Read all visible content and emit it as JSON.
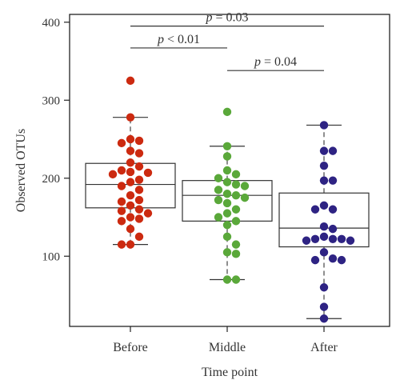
{
  "chart_data": {
    "type": "box",
    "xlabel": "Time point",
    "ylabel": "Observed OTUs",
    "ylim": [
      10,
      410
    ],
    "yticks": [
      100,
      200,
      300,
      400
    ],
    "categories": [
      "Before",
      "Middle",
      "After"
    ],
    "colors": [
      "#cc2a10",
      "#5aa83a",
      "#2e2383"
    ],
    "groups": [
      {
        "name": "Before",
        "color": "#cc2a10",
        "whisker_low": 115,
        "q1": 162,
        "median": 192,
        "q3": 219,
        "whisker_high": 278,
        "points": [
          325,
          278,
          250,
          248,
          245,
          235,
          232,
          220,
          215,
          210,
          208,
          207,
          205,
          198,
          195,
          190,
          185,
          178,
          172,
          170,
          165,
          160,
          158,
          155,
          150,
          148,
          145,
          135,
          125,
          115,
          115
        ]
      },
      {
        "name": "Middle",
        "color": "#5aa83a",
        "whisker_low": 70,
        "q1": 145,
        "median": 178,
        "q3": 197,
        "whisker_high": 241,
        "points": [
          285,
          241,
          228,
          210,
          205,
          200,
          195,
          192,
          190,
          185,
          180,
          178,
          175,
          172,
          168,
          160,
          155,
          150,
          145,
          140,
          125,
          115,
          105,
          103,
          70,
          70
        ]
      },
      {
        "name": "After",
        "color": "#2e2383",
        "whisker_low": 20,
        "q1": 112,
        "median": 136,
        "q3": 181,
        "whisker_high": 268,
        "points": [
          268,
          235,
          235,
          216,
          197,
          197,
          165,
          160,
          160,
          138,
          135,
          125,
          122,
          122,
          122,
          120,
          120,
          105,
          97,
          95,
          95,
          60,
          35,
          20
        ]
      }
    ],
    "annotations": [
      {
        "label": "p = 0.03",
        "from": 0,
        "to": 2,
        "y": 395
      },
      {
        "label": "p < 0.01",
        "from": 0,
        "to": 1,
        "y": 367
      },
      {
        "label": "p = 0.04",
        "from": 1,
        "to": 2,
        "y": 338
      }
    ]
  }
}
